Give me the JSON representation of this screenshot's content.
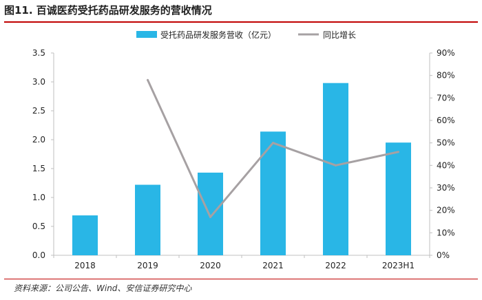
{
  "figure": {
    "title": "图11. 百诚医药受托药品研发服务的营收情况",
    "source": "资料来源：公司公告、Wind、安信证券研究中心"
  },
  "colors": {
    "bar": "#29b6e6",
    "line": "#a6a1a3",
    "accent_rule": "#c00000",
    "axis": "#bfbfbf"
  },
  "chart_data": {
    "type": "bar+line",
    "title": "",
    "categories": [
      "2018",
      "2019",
      "2020",
      "2021",
      "2022",
      "2023H1"
    ],
    "series": [
      {
        "name": "受托药品研发服务营收（亿元）",
        "type": "bar",
        "axis": "left",
        "values": [
          0.69,
          1.22,
          1.43,
          2.14,
          2.98,
          1.95
        ]
      },
      {
        "name": "同比增长",
        "type": "line",
        "axis": "right",
        "values": [
          null,
          78,
          17,
          50,
          40,
          46
        ]
      }
    ],
    "y_left": {
      "min": 0,
      "max": 3.5,
      "step": 0.5,
      "tick_labels": [
        "0.0",
        "0.5",
        "1.0",
        "1.5",
        "2.0",
        "2.5",
        "3.0",
        "3.5"
      ]
    },
    "y_right": {
      "min": 0,
      "max": 90,
      "step": 10,
      "tick_labels": [
        "0%",
        "10%",
        "20%",
        "30%",
        "40%",
        "50%",
        "60%",
        "70%",
        "80%",
        "90%"
      ]
    },
    "grid": false,
    "legend": "top"
  }
}
